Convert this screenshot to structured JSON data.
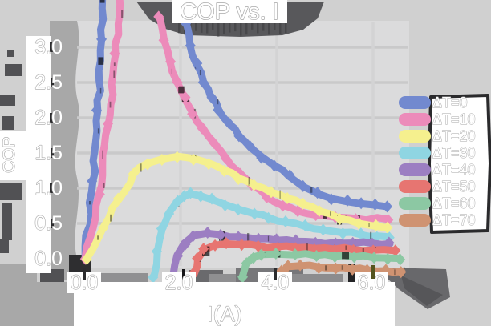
{
  "title": "COP vs. I",
  "axes": {
    "xlabel": "I(A)",
    "ylabel": "COP",
    "x_tick_labels": [
      "0.0",
      "2.0",
      "4.0",
      "6.0"
    ],
    "y_tick_labels": [
      "3.0",
      "2.5",
      "2.0",
      "1.5",
      "1.0",
      "0.5",
      "0.0"
    ],
    "x_tick_values": [
      0.0,
      2.0,
      4.0,
      6.0
    ],
    "y_tick_values": [
      3.0,
      2.5,
      2.0,
      1.5,
      1.0,
      0.5,
      0.0
    ]
  },
  "legend": {
    "entries": [
      {
        "label": "ΔT=0",
        "color": "#7289cf"
      },
      {
        "label": "ΔT=10",
        "color": "#ec8bba"
      },
      {
        "label": "ΔT=20",
        "color": "#f5f08e"
      },
      {
        "label": "ΔT=30",
        "color": "#8fd5e2"
      },
      {
        "label": "ΔT=40",
        "color": "#9c7ec2"
      },
      {
        "label": "ΔT=50",
        "color": "#e77571"
      },
      {
        "label": "ΔT=60",
        "color": "#8cc8a3"
      },
      {
        "label": "ΔT=70",
        "color": "#cf9372"
      }
    ]
  },
  "chart_data": {
    "type": "line",
    "title": "COP vs. I",
    "xlabel": "I(A)",
    "ylabel": "COP",
    "xlim": [
      0.0,
      6.6
    ],
    "ylim": [
      0.0,
      3.0
    ],
    "grid": true,
    "legend_position": "right",
    "marker": "diamond",
    "style": "xkcd-sketch",
    "series": [
      {
        "name": "ΔT=0",
        "color": "#7289cf",
        "segments": [
          [
            [
              0.02,
              0.02
            ],
            [
              0.18,
              1.1
            ],
            [
              0.28,
              2.1
            ],
            [
              0.36,
              3.1
            ],
            [
              0.42,
              4.3
            ]
          ],
          [
            [
              2.12,
              3.35
            ],
            [
              2.2,
              3.02
            ],
            [
              2.33,
              2.76
            ],
            [
              2.48,
              2.5
            ],
            [
              2.63,
              2.29
            ],
            [
              2.8,
              2.1
            ],
            [
              3.0,
              1.92
            ],
            [
              3.22,
              1.74
            ],
            [
              3.45,
              1.58
            ],
            [
              3.7,
              1.44
            ],
            [
              3.95,
              1.32
            ],
            [
              4.25,
              1.17
            ],
            [
              4.55,
              1.02
            ],
            [
              4.85,
              0.92
            ],
            [
              5.15,
              0.85
            ],
            [
              5.45,
              0.81
            ],
            [
              5.75,
              0.78
            ],
            [
              6.05,
              0.76
            ],
            [
              6.28,
              0.74
            ]
          ]
        ]
      },
      {
        "name": "ΔT=10",
        "color": "#ec8bba",
        "segments": [
          [
            [
              0.02,
              0.0
            ],
            [
              0.3,
              0.9
            ],
            [
              0.5,
              1.9
            ],
            [
              0.65,
              2.9
            ],
            [
              0.76,
              3.9
            ],
            [
              0.8,
              4.6
            ]
          ],
          [
            [
              1.57,
              3.42
            ],
            [
              1.66,
              3.1
            ],
            [
              1.78,
              2.8
            ],
            [
              1.92,
              2.52
            ],
            [
              2.08,
              2.28
            ],
            [
              2.26,
              2.06
            ],
            [
              2.46,
              1.86
            ],
            [
              2.7,
              1.64
            ],
            [
              2.95,
              1.42
            ],
            [
              3.22,
              1.22
            ],
            [
              3.5,
              1.04
            ],
            [
              3.8,
              0.88
            ],
            [
              4.1,
              0.76
            ],
            [
              4.45,
              0.67
            ],
            [
              4.8,
              0.62
            ],
            [
              5.2,
              0.59
            ],
            [
              5.65,
              0.57
            ],
            [
              6.3,
              0.56
            ]
          ]
        ]
      },
      {
        "name": "ΔT=20",
        "color": "#f5f08e",
        "segments": [
          [
            [
              0.05,
              0.0
            ],
            [
              0.4,
              0.45
            ],
            [
              0.72,
              0.84
            ],
            [
              1.02,
              1.2
            ],
            [
              1.3,
              1.35
            ],
            [
              1.6,
              1.41
            ],
            [
              1.95,
              1.45
            ],
            [
              2.28,
              1.42
            ],
            [
              2.58,
              1.36
            ],
            [
              2.9,
              1.26
            ],
            [
              3.22,
              1.14
            ],
            [
              3.55,
              1.04
            ],
            [
              3.88,
              0.94
            ],
            [
              4.2,
              0.86
            ],
            [
              4.55,
              0.77
            ],
            [
              4.9,
              0.67
            ],
            [
              5.3,
              0.57
            ],
            [
              5.7,
              0.5
            ],
            [
              6.05,
              0.46
            ],
            [
              6.28,
              0.44
            ]
          ]
        ]
      },
      {
        "name": "ΔT=30",
        "color": "#8fd5e2",
        "segments": [
          [
            [
              1.45,
              -0.25
            ],
            [
              1.52,
              0.1
            ],
            [
              1.62,
              0.42
            ],
            [
              1.76,
              0.65
            ],
            [
              1.92,
              0.8
            ],
            [
              2.08,
              0.89
            ],
            [
              2.22,
              0.92
            ],
            [
              2.42,
              0.89
            ],
            [
              2.65,
              0.84
            ],
            [
              2.92,
              0.77
            ],
            [
              3.22,
              0.7
            ],
            [
              3.52,
              0.64
            ],
            [
              3.85,
              0.58
            ],
            [
              4.2,
              0.52
            ],
            [
              4.58,
              0.46
            ],
            [
              4.95,
              0.41
            ],
            [
              5.35,
              0.37
            ],
            [
              5.75,
              0.34
            ],
            [
              6.1,
              0.32
            ],
            [
              6.32,
              0.31
            ]
          ]
        ]
      },
      {
        "name": "ΔT=40",
        "color": "#9c7ec2",
        "segments": [
          [
            [
              1.85,
              -0.22
            ],
            [
              1.93,
              0.05
            ],
            [
              2.08,
              0.22
            ],
            [
              2.28,
              0.33
            ],
            [
              2.55,
              0.36
            ],
            [
              2.85,
              0.34
            ],
            [
              3.2,
              0.31
            ],
            [
              3.6,
              0.28
            ],
            [
              4.0,
              0.26
            ],
            [
              4.4,
              0.245
            ],
            [
              4.8,
              0.235
            ],
            [
              5.2,
              0.228
            ],
            [
              5.6,
              0.222
            ],
            [
              6.0,
              0.217
            ],
            [
              6.35,
              0.213
            ]
          ]
        ]
      },
      {
        "name": "ΔT=50",
        "color": "#e77571",
        "segments": [
          [
            [
              2.28,
              -0.22
            ],
            [
              2.36,
              0.0
            ],
            [
              2.5,
              0.13
            ],
            [
              2.7,
              0.19
            ],
            [
              2.95,
              0.21
            ],
            [
              3.25,
              0.2
            ],
            [
              3.6,
              0.185
            ],
            [
              4.0,
              0.17
            ],
            [
              4.4,
              0.155
            ],
            [
              4.8,
              0.145
            ],
            [
              5.2,
              0.135
            ],
            [
              5.6,
              0.128
            ],
            [
              6.0,
              0.122
            ],
            [
              6.45,
              0.115
            ]
          ]
        ]
      },
      {
        "name": "ΔT=60",
        "color": "#8cc8a3",
        "segments": [
          [
            [
              3.28,
              -0.27
            ],
            [
              3.36,
              -0.08
            ],
            [
              3.5,
              0.02
            ],
            [
              3.7,
              0.06
            ],
            [
              4.0,
              0.065
            ],
            [
              4.4,
              0.055
            ],
            [
              4.8,
              0.045
            ],
            [
              5.2,
              0.035
            ],
            [
              5.6,
              0.025
            ],
            [
              6.0,
              0.015
            ],
            [
              6.3,
              0.01
            ],
            [
              6.55,
              0.005
            ]
          ]
        ]
      },
      {
        "name": "ΔT=70",
        "color": "#cf9372",
        "segments": [
          [
            [
              4.05,
              -0.32
            ],
            [
              4.12,
              -0.18
            ],
            [
              4.25,
              -0.11
            ],
            [
              4.5,
              -0.1
            ],
            [
              4.85,
              -0.115
            ],
            [
              5.2,
              -0.13
            ],
            [
              5.55,
              -0.145
            ],
            [
              5.9,
              -0.16
            ],
            [
              6.25,
              -0.17
            ],
            [
              6.6,
              -0.18
            ]
          ]
        ]
      }
    ]
  }
}
